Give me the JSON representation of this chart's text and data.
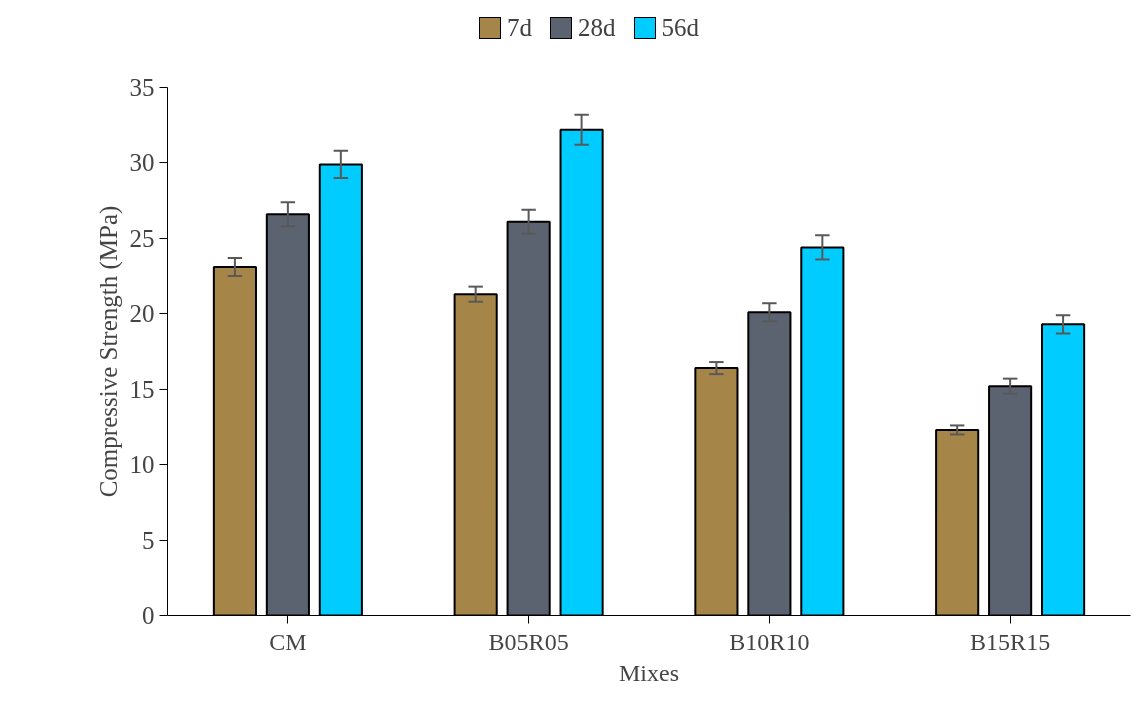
{
  "chart_data": {
    "type": "bar",
    "xlabel": "Mixes",
    "ylabel": "Compressive Strength (MPa)",
    "categories": [
      "CM",
      "B05R05",
      "B10R10",
      "B15R15"
    ],
    "series": [
      {
        "name": "7d",
        "color": "#a68548",
        "values": [
          23.1,
          21.3,
          16.4,
          12.3
        ],
        "errors": [
          0.6,
          0.5,
          0.4,
          0.3
        ]
      },
      {
        "name": "28d",
        "color": "#5b6270",
        "values": [
          26.6,
          26.1,
          20.1,
          15.2
        ],
        "errors": [
          0.8,
          0.8,
          0.6,
          0.5
        ]
      },
      {
        "name": "56d",
        "color": "#00ccff",
        "values": [
          29.9,
          32.2,
          24.4,
          19.3
        ],
        "errors": [
          0.9,
          1.0,
          0.8,
          0.6
        ]
      }
    ],
    "ylim": [
      0,
      35
    ],
    "yticks": [
      0,
      5,
      10,
      15,
      20,
      25,
      30,
      35
    ],
    "grid": false,
    "legend": "top"
  }
}
